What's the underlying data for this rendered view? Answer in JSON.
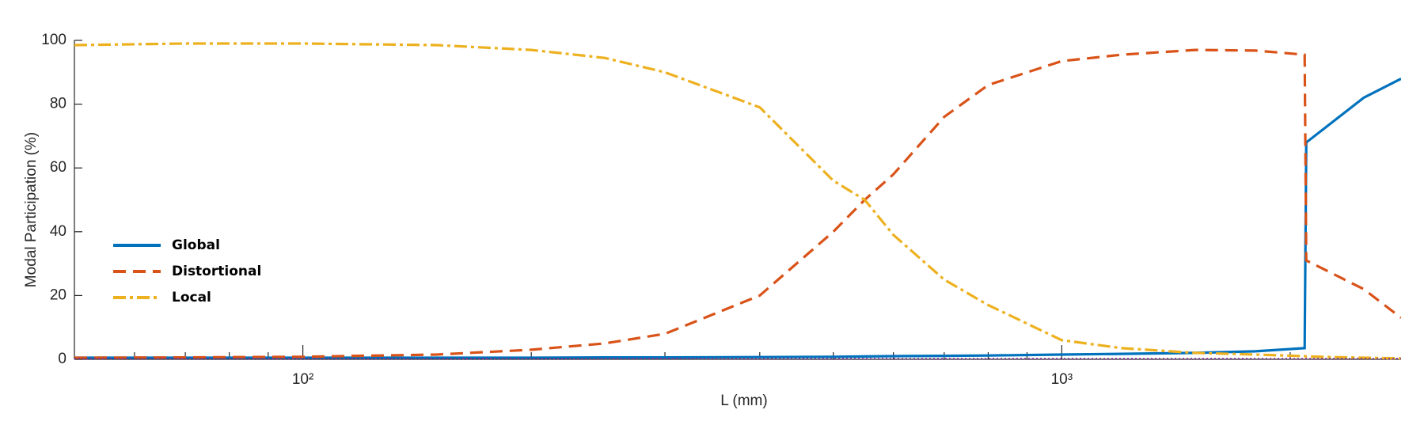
{
  "chart_data": {
    "type": "line",
    "xlabel": "L (mm)",
    "ylabel": "Modal Participation (%)",
    "xscale": "log",
    "x": [
      50,
      70,
      100,
      150,
      200,
      250,
      300,
      400,
      500,
      550,
      600,
      700,
      800,
      1000,
      1200,
      1500,
      1800,
      2090,
      2100,
      2500,
      2800
    ],
    "series": [
      {
        "name": "Global",
        "color": "#0072bd",
        "dash": "solid",
        "values": [
          0.5,
          0.5,
          0.5,
          0.5,
          0.5,
          0.6,
          0.6,
          0.7,
          0.8,
          0.9,
          1,
          1.1,
          1.2,
          1.5,
          1.7,
          2,
          2.5,
          3.5,
          68,
          82,
          88
        ]
      },
      {
        "name": "Distortional",
        "color": "#d95319",
        "dash": "dashed",
        "values": [
          0.5,
          0.6,
          0.8,
          1.5,
          3,
          5,
          8,
          20,
          40,
          50,
          58,
          76,
          86,
          93.5,
          95.5,
          97,
          96.8,
          95.5,
          31,
          22,
          13
        ]
      },
      {
        "name": "Local",
        "color": "#edb120",
        "dash": "dashdot",
        "values": [
          98.5,
          99,
          99,
          98.5,
          97,
          94.5,
          90,
          79,
          56,
          50,
          39,
          25,
          17,
          6,
          3.5,
          2,
          1.5,
          1,
          0.9,
          0.5,
          0.3
        ]
      },
      {
        "color": "#7e2f8e",
        "dash": "dotted",
        "values": [
          0.2,
          0.2,
          0.2,
          0.2,
          0.2,
          0.2,
          0.2,
          0.2,
          0.2,
          0.2,
          0.2,
          0.2,
          0.2,
          0.2,
          0.2,
          0.2,
          0.2,
          0.2,
          0.2,
          0.2,
          0.2
        ]
      }
    ],
    "xlim": [
      50,
      2800
    ],
    "ylim": [
      0,
      100
    ],
    "xticks": [
      {
        "value": 100,
        "label": "10²"
      },
      {
        "value": 1000,
        "label": "10³"
      }
    ],
    "xminorticks": [
      60,
      70,
      80,
      90,
      200,
      300,
      400,
      500,
      600,
      700,
      800,
      900,
      2000
    ],
    "yticks": [
      0,
      20,
      40,
      60,
      80,
      100
    ],
    "grid": false,
    "legend": "lower left"
  }
}
